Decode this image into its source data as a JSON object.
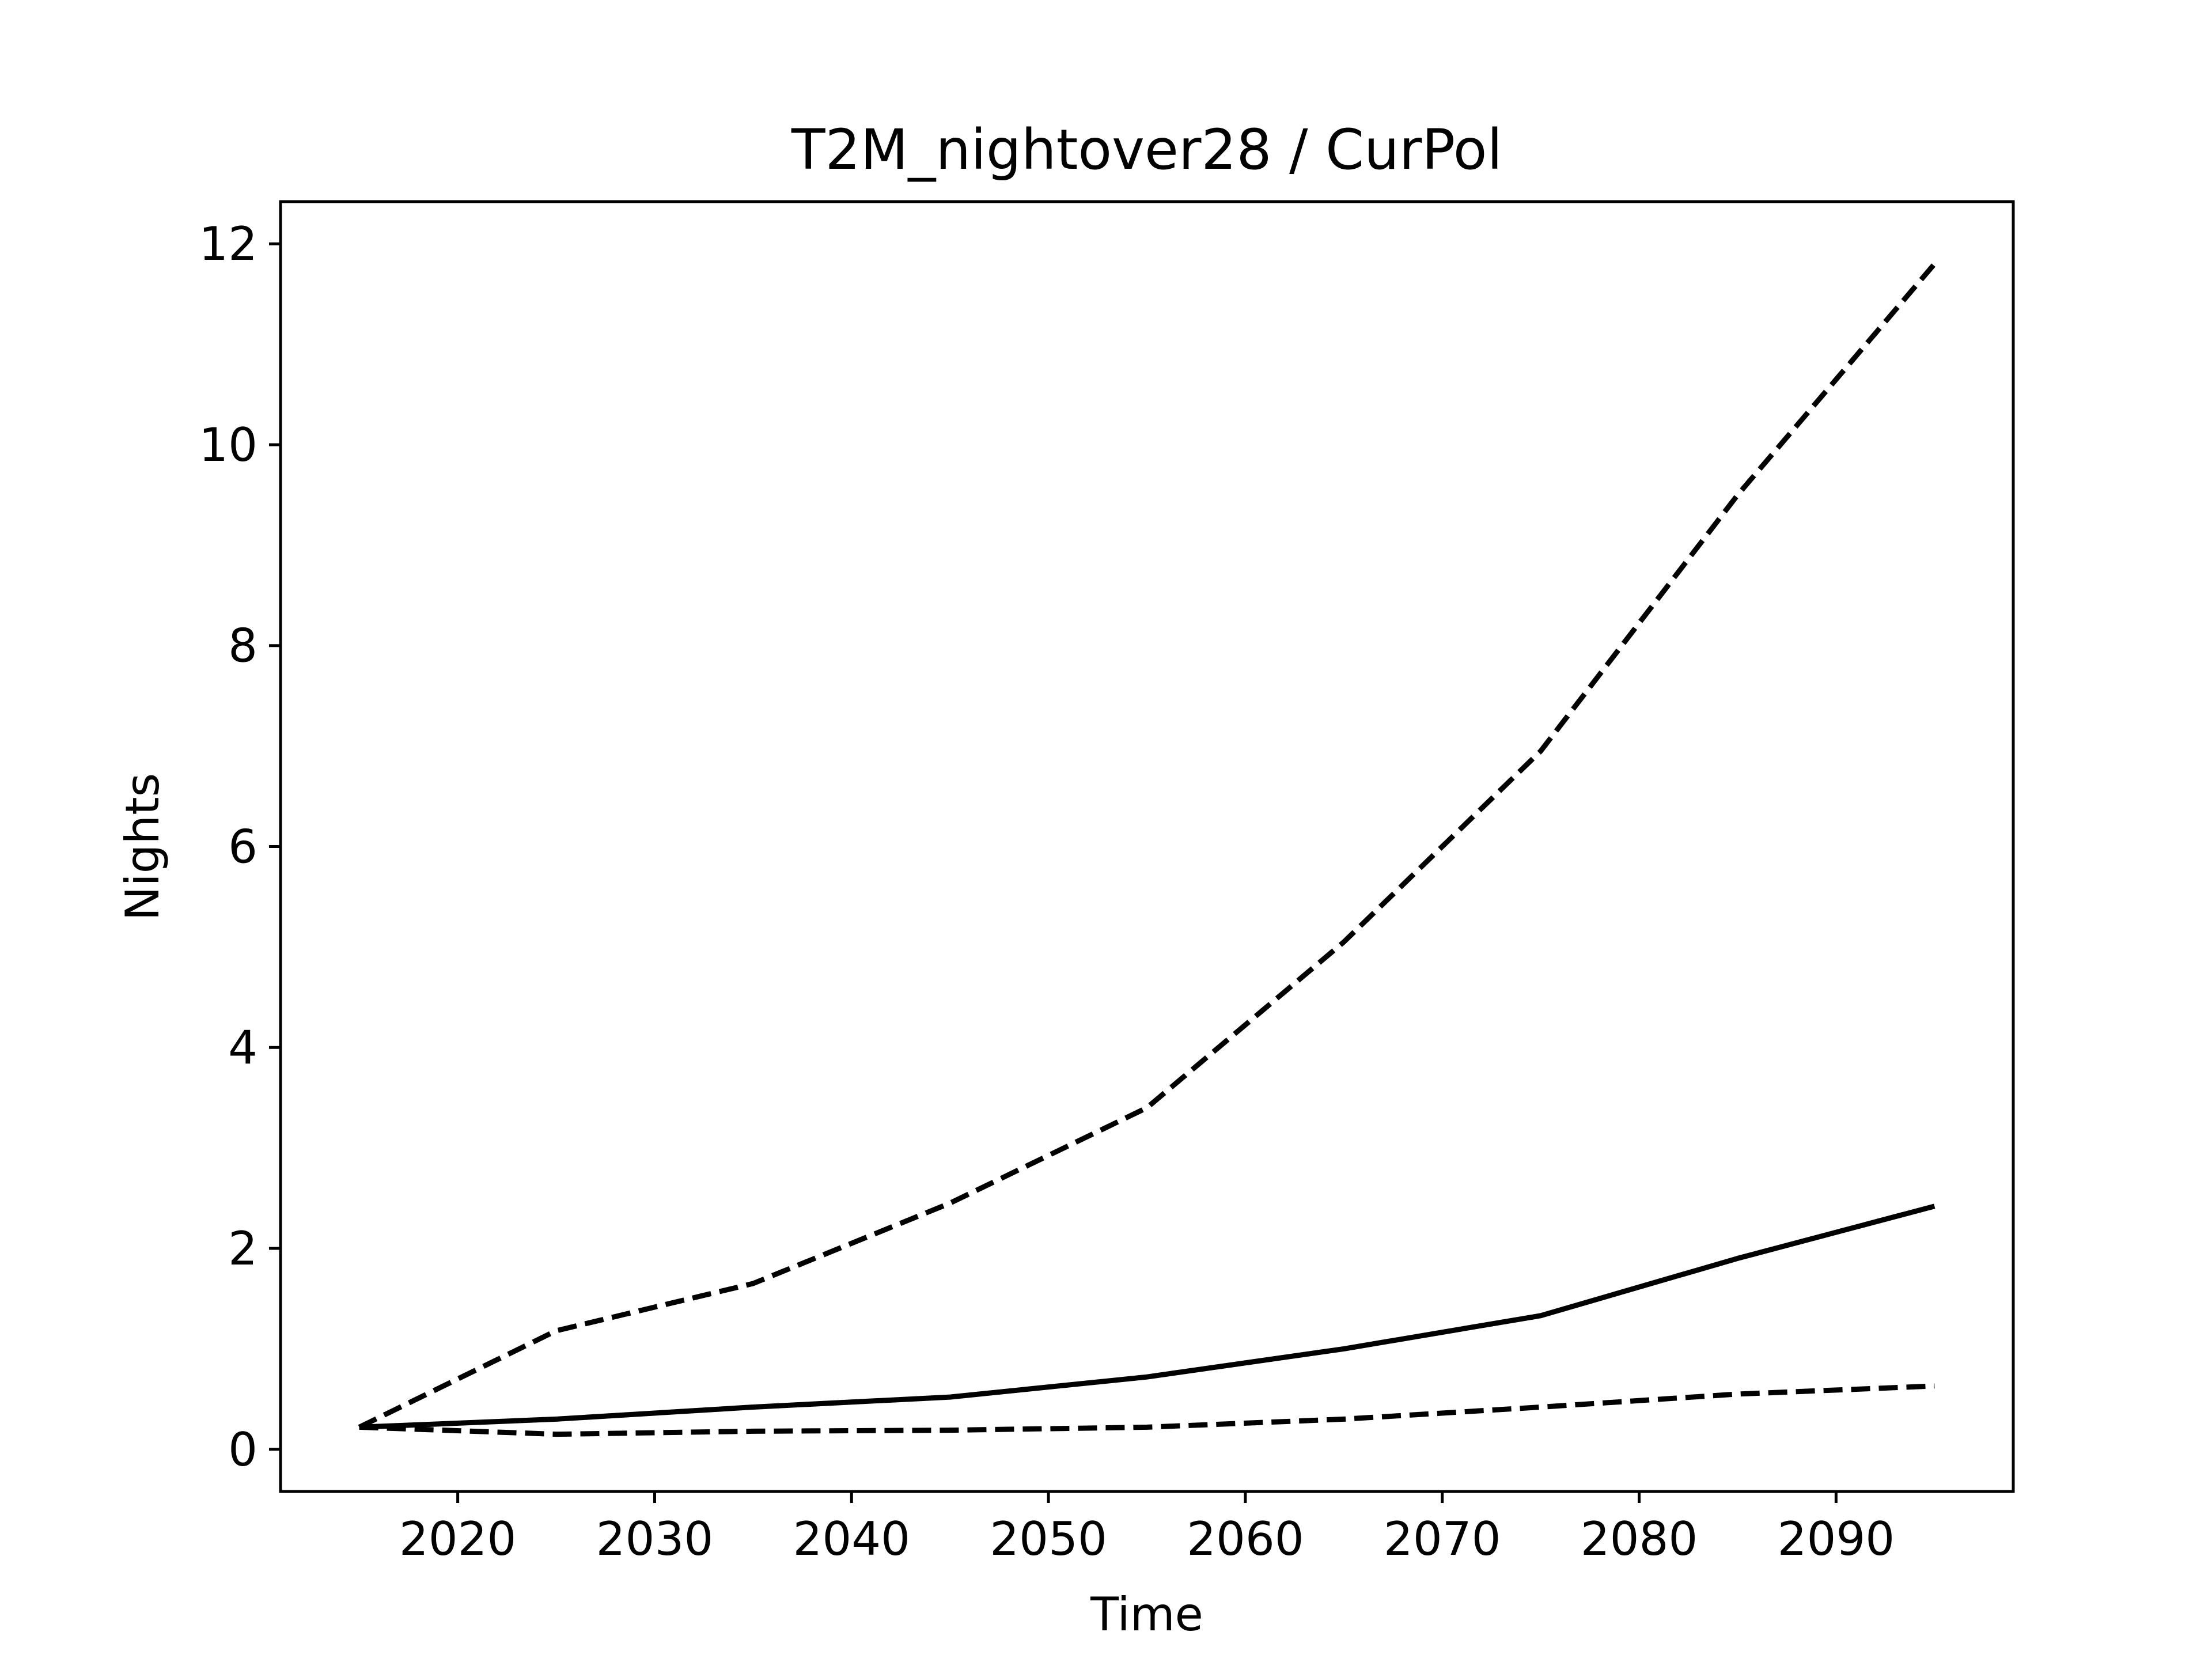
{
  "chart_data": {
    "type": "line",
    "title": "T2M_nightover28 / CurPol",
    "xlabel": "Time",
    "ylabel": "Nights",
    "xlim": [
      2011,
      2099
    ],
    "ylim": [
      -0.42,
      12.42
    ],
    "xticks": [
      2020,
      2030,
      2040,
      2050,
      2060,
      2070,
      2080,
      2090
    ],
    "yticks": [
      0,
      2,
      4,
      6,
      8,
      10,
      12
    ],
    "xtick_labels": [
      "2020",
      "2030",
      "2040",
      "2050",
      "2060",
      "2070",
      "2080",
      "2090"
    ],
    "ytick_labels": [
      "0",
      "2",
      "4",
      "6",
      "8",
      "10",
      "12"
    ],
    "grid": false,
    "legend": "none",
    "x": [
      2015,
      2025,
      2035,
      2045,
      2055,
      2065,
      2075,
      2085,
      2095
    ],
    "series": [
      {
        "style": "dashed",
        "color": "#000000",
        "values": [
          0.22,
          1.18,
          1.65,
          2.45,
          3.4,
          5.05,
          6.95,
          9.5,
          11.8
        ]
      },
      {
        "style": "solid",
        "color": "#000000",
        "values": [
          0.22,
          0.3,
          0.42,
          0.52,
          0.72,
          1.0,
          1.33,
          1.9,
          2.42
        ]
      },
      {
        "style": "dashed",
        "color": "#000000",
        "values": [
          0.22,
          0.15,
          0.18,
          0.19,
          0.22,
          0.3,
          0.42,
          0.55,
          0.63
        ]
      }
    ]
  }
}
